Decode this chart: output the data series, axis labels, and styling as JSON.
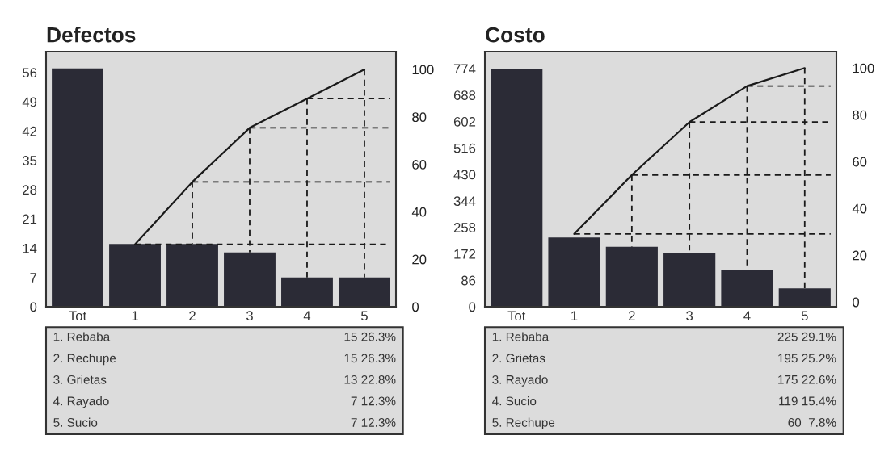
{
  "chart_data": [
    {
      "type": "bar",
      "title": "Defectos",
      "categories": [
        "Tot",
        "1",
        "2",
        "3",
        "4",
        "5"
      ],
      "series": [
        {
          "type": "bar",
          "color": "#2b2b36",
          "values": [
            57,
            15,
            15,
            13,
            7,
            7
          ]
        },
        {
          "type": "line",
          "axis": "y2",
          "color": "#1a1a1a",
          "values": [
            null,
            26.3,
            52.6,
            75.4,
            87.7,
            100
          ]
        }
      ],
      "ylim": [
        0,
        61
      ],
      "yticks": [
        0,
        7,
        14,
        21,
        28,
        35,
        42,
        49,
        56
      ],
      "y2lim": [
        0,
        107.5
      ],
      "y2ticks": [
        0,
        20,
        40,
        60,
        80,
        100
      ],
      "ref_lines": [
        {
          "axis": "y2",
          "value": 26.3,
          "line_style": "dashed",
          "color": "#1a1a1a"
        },
        {
          "axis": "y2",
          "value": 52.6,
          "line_style": "dashed",
          "color": "#1a1a1a"
        },
        {
          "axis": "y2",
          "value": 75.4,
          "line_style": "dashed",
          "color": "#1a1a1a"
        },
        {
          "axis": "y2",
          "value": 87.7,
          "line_style": "dashed",
          "color": "#1a1a1a"
        },
        {
          "axis": "x",
          "value": "2",
          "line_style": "dashed",
          "color": "#1a1a1a"
        },
        {
          "axis": "x",
          "value": "3",
          "line_style": "dashed",
          "color": "#1a1a1a"
        },
        {
          "axis": "x",
          "value": "4",
          "line_style": "dashed",
          "color": "#1a1a1a"
        },
        {
          "axis": "x",
          "value": "5",
          "line_style": "dashed",
          "color": "#1a1a1a"
        }
      ],
      "grid": false,
      "legend": false,
      "annotations": [
        "1. Rebaba",
        "15 26.3%",
        "2. Rechupe",
        "15 26.3%",
        "3. Grietas",
        "13 22.8%",
        "4. Rayado",
        "7 12.3%",
        "5. Sucio",
        "7 12.3%"
      ]
    },
    {
      "type": "bar",
      "title": "Costo",
      "categories": [
        "Tot",
        "1",
        "2",
        "3",
        "4",
        "5"
      ],
      "series": [
        {
          "type": "bar",
          "color": "#2b2b36",
          "values": [
            774,
            225,
            195,
            175,
            119,
            60
          ]
        },
        {
          "type": "line",
          "axis": "y2",
          "color": "#1a1a1a",
          "values": [
            null,
            29.1,
            54.3,
            76.9,
            92.3,
            100
          ]
        }
      ],
      "ylim": [
        0,
        829
      ],
      "yticks": [
        0,
        86,
        172,
        258,
        344,
        430,
        516,
        602,
        688,
        774
      ],
      "y2lim": [
        -2,
        107
      ],
      "y2ticks": [
        0,
        20,
        40,
        60,
        80,
        100
      ],
      "ref_lines": [
        {
          "axis": "y2",
          "value": 29.1,
          "line_style": "dashed",
          "color": "#1a1a1a"
        },
        {
          "axis": "y2",
          "value": 54.3,
          "line_style": "dashed",
          "color": "#1a1a1a"
        },
        {
          "axis": "y2",
          "value": 76.9,
          "line_style": "dashed",
          "color": "#1a1a1a"
        },
        {
          "axis": "y2",
          "value": 92.3,
          "line_style": "dashed",
          "color": "#1a1a1a"
        },
        {
          "axis": "x",
          "value": "2",
          "line_style": "dashed",
          "color": "#1a1a1a"
        },
        {
          "axis": "x",
          "value": "3",
          "line_style": "dashed",
          "color": "#1a1a1a"
        },
        {
          "axis": "x",
          "value": "4",
          "line_style": "dashed",
          "color": "#1a1a1a"
        },
        {
          "axis": "x",
          "value": "5",
          "line_style": "dashed",
          "color": "#1a1a1a"
        }
      ],
      "grid": false,
      "legend": false,
      "annotations": [
        "1. Rebaba",
        "225 29.1%",
        "2. Grietas",
        "195 25.2%",
        "3. Rayado",
        "175 22.6%",
        "4. Sucio",
        "119 15.4%",
        "5. Rechupe",
        "60  7.8%"
      ]
    }
  ]
}
